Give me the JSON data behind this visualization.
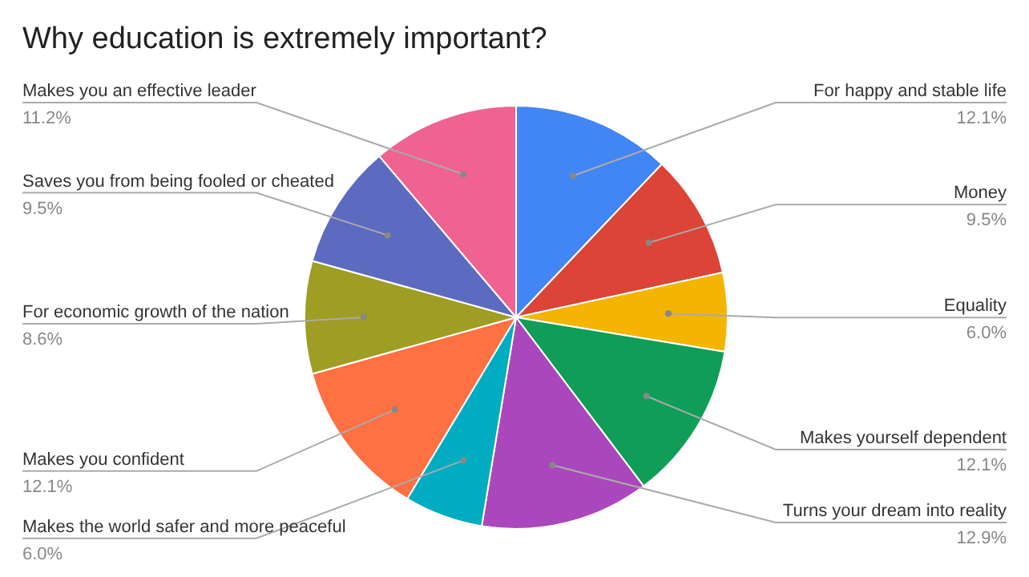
{
  "chart_data": {
    "type": "pie",
    "title": "Why education is extremely important?",
    "categories": [
      "For happy and stable life",
      "Money",
      "Equality",
      "Makes yourself dependent",
      "Turns your dream into reality",
      "Makes the world safer and more peaceful",
      "Makes you confident",
      "For economic growth of the nation",
      "Saves you from being fooled or cheated",
      "Makes you an effective leader"
    ],
    "values": [
      12.1,
      9.5,
      6.0,
      12.1,
      12.9,
      6.0,
      12.1,
      8.6,
      9.5,
      11.2
    ],
    "value_labels": [
      "12.1%",
      "9.5%",
      "6.0%",
      "12.1%",
      "12.9%",
      "6.0%",
      "12.1%",
      "8.6%",
      "9.5%",
      "11.2%"
    ],
    "colors": [
      "#4285f4",
      "#db4437",
      "#f4b400",
      "#0f9d58",
      "#ab47bc",
      "#00acc1",
      "#ff7043",
      "#9e9d24",
      "#5c6bc0",
      "#f06292"
    ],
    "legend": false
  }
}
